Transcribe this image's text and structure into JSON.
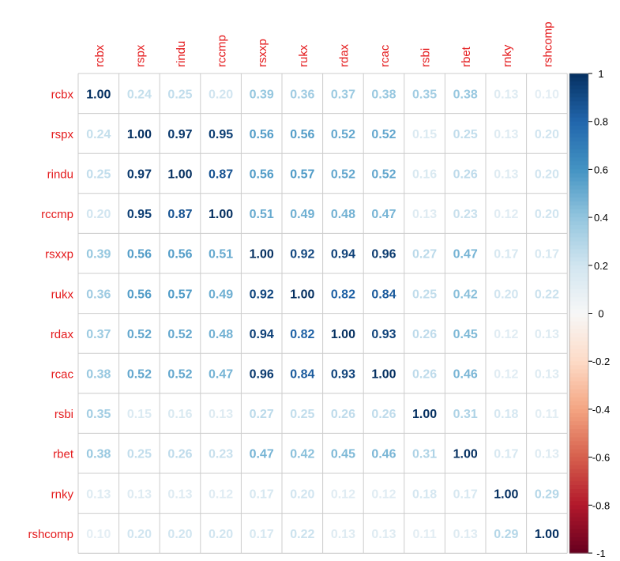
{
  "chart_data": {
    "type": "heatmap",
    "labels": [
      "rcbx",
      "rspx",
      "rindu",
      "rccmp",
      "rsxxp",
      "rukx",
      "rdax",
      "rcac",
      "rsbi",
      "rbet",
      "rnky",
      "rshcomp"
    ],
    "matrix": [
      [
        "1.00",
        "0.24",
        "0.25",
        "0.20",
        "0.39",
        "0.36",
        "0.37",
        "0.38",
        "0.35",
        "0.38",
        "0.13",
        "0.10"
      ],
      [
        "0.24",
        "1.00",
        "0.97",
        "0.95",
        "0.56",
        "0.56",
        "0.52",
        "0.52",
        "0.15",
        "0.25",
        "0.13",
        "0.20"
      ],
      [
        "0.25",
        "0.97",
        "1.00",
        "0.87",
        "0.56",
        "0.57",
        "0.52",
        "0.52",
        "0.16",
        "0.26",
        "0.13",
        "0.20"
      ],
      [
        "0.20",
        "0.95",
        "0.87",
        "1.00",
        "0.51",
        "0.49",
        "0.48",
        "0.47",
        "0.13",
        "0.23",
        "0.12",
        "0.20"
      ],
      [
        "0.39",
        "0.56",
        "0.56",
        "0.51",
        "1.00",
        "0.92",
        "0.94",
        "0.96",
        "0.27",
        "0.47",
        "0.17",
        "0.17"
      ],
      [
        "0.36",
        "0.56",
        "0.57",
        "0.49",
        "0.92",
        "1.00",
        "0.82",
        "0.84",
        "0.25",
        "0.42",
        "0.20",
        "0.22"
      ],
      [
        "0.37",
        "0.52",
        "0.52",
        "0.48",
        "0.94",
        "0.82",
        "1.00",
        "0.93",
        "0.26",
        "0.45",
        "0.12",
        "0.13"
      ],
      [
        "0.38",
        "0.52",
        "0.52",
        "0.47",
        "0.96",
        "0.84",
        "0.93",
        "1.00",
        "0.26",
        "0.46",
        "0.12",
        "0.13"
      ],
      [
        "0.35",
        "0.15",
        "0.16",
        "0.13",
        "0.27",
        "0.25",
        "0.26",
        "0.26",
        "1.00",
        "0.31",
        "0.18",
        "0.11"
      ],
      [
        "0.38",
        "0.25",
        "0.26",
        "0.23",
        "0.47",
        "0.42",
        "0.45",
        "0.46",
        "0.31",
        "1.00",
        "0.17",
        "0.13"
      ],
      [
        "0.13",
        "0.13",
        "0.13",
        "0.12",
        "0.17",
        "0.20",
        "0.12",
        "0.12",
        "0.18",
        "0.17",
        "1.00",
        "0.29"
      ],
      [
        "0.10",
        "0.20",
        "0.20",
        "0.20",
        "0.17",
        "0.22",
        "0.13",
        "0.13",
        "0.11",
        "0.13",
        "0.29",
        "1.00"
      ]
    ],
    "colorbar": {
      "range": [
        -1,
        1
      ],
      "ticks": [
        "1",
        "0.8",
        "0.6",
        "0.4",
        "0.2",
        "0",
        "-0.2",
        "-0.4",
        "-0.6",
        "-0.8",
        "-1"
      ]
    },
    "colors": {
      "label": "#e41a1c",
      "positive_strong": "#053061",
      "positive_mid": "#4393c3",
      "neutral": "#f7f7f7",
      "negative_mid": "#d6604d",
      "negative_strong": "#67001f",
      "grid": "#cccccc"
    }
  }
}
